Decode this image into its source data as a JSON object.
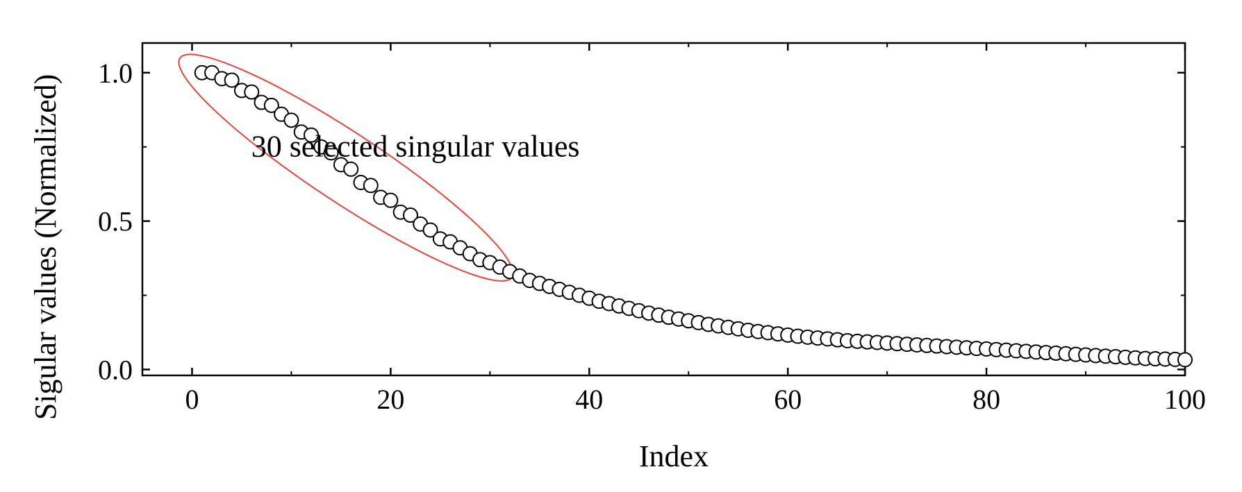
{
  "chart_data": {
    "type": "scatter",
    "title": "",
    "xlabel": "Index",
    "ylabel": "Sigular values (Normalized)",
    "xlim": [
      -5,
      100
    ],
    "ylim": [
      -0.02,
      1.1
    ],
    "xticks": [
      0,
      20,
      40,
      60,
      80,
      100
    ],
    "yticks": [
      0.0,
      0.5,
      1.0
    ],
    "ytick_labels": [
      "0.0",
      "0.5",
      "1.0"
    ],
    "grid": false,
    "marker": "open-circle",
    "x": [
      1,
      2,
      3,
      4,
      5,
      6,
      7,
      8,
      9,
      10,
      11,
      12,
      13,
      14,
      15,
      16,
      17,
      18,
      19,
      20,
      21,
      22,
      23,
      24,
      25,
      26,
      27,
      28,
      29,
      30,
      31,
      32,
      33,
      34,
      35,
      36,
      37,
      38,
      39,
      40,
      41,
      42,
      43,
      44,
      45,
      46,
      47,
      48,
      49,
      50,
      51,
      52,
      53,
      54,
      55,
      56,
      57,
      58,
      59,
      60,
      61,
      62,
      63,
      64,
      65,
      66,
      67,
      68,
      69,
      70,
      71,
      72,
      73,
      74,
      75,
      76,
      77,
      78,
      79,
      80,
      81,
      82,
      83,
      84,
      85,
      86,
      87,
      88,
      89,
      90,
      91,
      92,
      93,
      94,
      95,
      96,
      97,
      98,
      99,
      100
    ],
    "y": [
      1.0,
      1.0,
      0.98,
      0.975,
      0.94,
      0.935,
      0.9,
      0.89,
      0.86,
      0.84,
      0.8,
      0.79,
      0.75,
      0.73,
      0.69,
      0.675,
      0.63,
      0.62,
      0.58,
      0.57,
      0.53,
      0.52,
      0.49,
      0.47,
      0.44,
      0.43,
      0.41,
      0.39,
      0.37,
      0.36,
      0.345,
      0.33,
      0.315,
      0.3,
      0.29,
      0.28,
      0.27,
      0.26,
      0.25,
      0.24,
      0.23,
      0.222,
      0.214,
      0.206,
      0.198,
      0.19,
      0.183,
      0.176,
      0.17,
      0.164,
      0.158,
      0.152,
      0.147,
      0.142,
      0.137,
      0.132,
      0.128,
      0.124,
      0.12,
      0.116,
      0.112,
      0.109,
      0.106,
      0.103,
      0.1,
      0.097,
      0.095,
      0.093,
      0.091,
      0.089,
      0.087,
      0.085,
      0.083,
      0.081,
      0.079,
      0.077,
      0.075,
      0.073,
      0.071,
      0.069,
      0.067,
      0.065,
      0.063,
      0.061,
      0.059,
      0.057,
      0.055,
      0.053,
      0.051,
      0.049,
      0.047,
      0.045,
      0.043,
      0.041,
      0.039,
      0.037,
      0.036,
      0.035,
      0.034,
      0.033
    ],
    "annotations": [
      {
        "text": "30 selected singular values",
        "x": 22.5,
        "y": 0.75
      }
    ],
    "highlight": {
      "shape": "ellipse",
      "color": "#e8413c",
      "from_index": 1,
      "to_index": 30
    }
  }
}
